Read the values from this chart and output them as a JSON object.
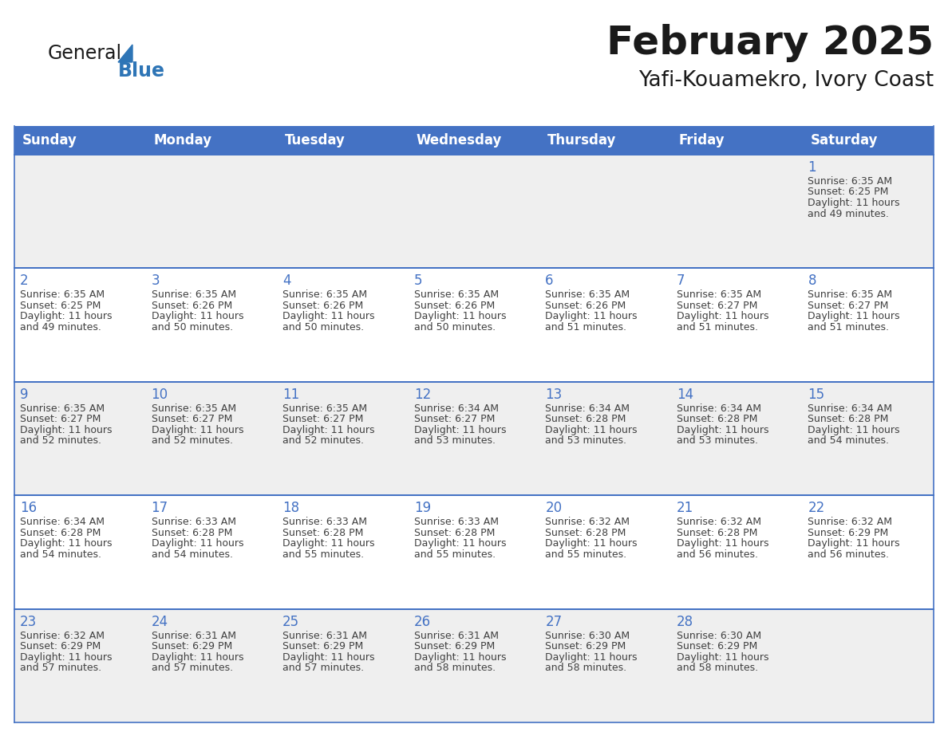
{
  "title": "February 2025",
  "subtitle": "Yafi-Kouamekro, Ivory Coast",
  "header_bg": "#4472C4",
  "header_text_color": "#FFFFFF",
  "day_names": [
    "Sunday",
    "Monday",
    "Tuesday",
    "Wednesday",
    "Thursday",
    "Friday",
    "Saturday"
  ],
  "cell_bg_odd": "#EFEFEF",
  "cell_bg_even": "#FFFFFF",
  "border_color": "#4472C4",
  "date_color": "#4472C4",
  "text_color": "#404040",
  "title_color": "#1a1a1a",
  "logo_general_color": "#1a1a1a",
  "logo_blue_color": "#2E75B6",
  "calendar_data": [
    [
      null,
      null,
      null,
      null,
      null,
      null,
      1
    ],
    [
      2,
      3,
      4,
      5,
      6,
      7,
      8
    ],
    [
      9,
      10,
      11,
      12,
      13,
      14,
      15
    ],
    [
      16,
      17,
      18,
      19,
      20,
      21,
      22
    ],
    [
      23,
      24,
      25,
      26,
      27,
      28,
      null
    ]
  ],
  "sunrise_data": {
    "1": "6:35 AM",
    "2": "6:35 AM",
    "3": "6:35 AM",
    "4": "6:35 AM",
    "5": "6:35 AM",
    "6": "6:35 AM",
    "7": "6:35 AM",
    "8": "6:35 AM",
    "9": "6:35 AM",
    "10": "6:35 AM",
    "11": "6:35 AM",
    "12": "6:34 AM",
    "13": "6:34 AM",
    "14": "6:34 AM",
    "15": "6:34 AM",
    "16": "6:34 AM",
    "17": "6:33 AM",
    "18": "6:33 AM",
    "19": "6:33 AM",
    "20": "6:32 AM",
    "21": "6:32 AM",
    "22": "6:32 AM",
    "23": "6:32 AM",
    "24": "6:31 AM",
    "25": "6:31 AM",
    "26": "6:31 AM",
    "27": "6:30 AM",
    "28": "6:30 AM"
  },
  "sunset_data": {
    "1": "6:25 PM",
    "2": "6:25 PM",
    "3": "6:26 PM",
    "4": "6:26 PM",
    "5": "6:26 PM",
    "6": "6:26 PM",
    "7": "6:27 PM",
    "8": "6:27 PM",
    "9": "6:27 PM",
    "10": "6:27 PM",
    "11": "6:27 PM",
    "12": "6:27 PM",
    "13": "6:28 PM",
    "14": "6:28 PM",
    "15": "6:28 PM",
    "16": "6:28 PM",
    "17": "6:28 PM",
    "18": "6:28 PM",
    "19": "6:28 PM",
    "20": "6:28 PM",
    "21": "6:28 PM",
    "22": "6:29 PM",
    "23": "6:29 PM",
    "24": "6:29 PM",
    "25": "6:29 PM",
    "26": "6:29 PM",
    "27": "6:29 PM",
    "28": "6:29 PM"
  },
  "daylight_data": {
    "1": [
      "11 hours",
      "and 49 minutes."
    ],
    "2": [
      "11 hours",
      "and 49 minutes."
    ],
    "3": [
      "11 hours",
      "and 50 minutes."
    ],
    "4": [
      "11 hours",
      "and 50 minutes."
    ],
    "5": [
      "11 hours",
      "and 50 minutes."
    ],
    "6": [
      "11 hours",
      "and 51 minutes."
    ],
    "7": [
      "11 hours",
      "and 51 minutes."
    ],
    "8": [
      "11 hours",
      "and 51 minutes."
    ],
    "9": [
      "11 hours",
      "and 52 minutes."
    ],
    "10": [
      "11 hours",
      "and 52 minutes."
    ],
    "11": [
      "11 hours",
      "and 52 minutes."
    ],
    "12": [
      "11 hours",
      "and 53 minutes."
    ],
    "13": [
      "11 hours",
      "and 53 minutes."
    ],
    "14": [
      "11 hours",
      "and 53 minutes."
    ],
    "15": [
      "11 hours",
      "and 54 minutes."
    ],
    "16": [
      "11 hours",
      "and 54 minutes."
    ],
    "17": [
      "11 hours",
      "and 54 minutes."
    ],
    "18": [
      "11 hours",
      "and 55 minutes."
    ],
    "19": [
      "11 hours",
      "and 55 minutes."
    ],
    "20": [
      "11 hours",
      "and 55 minutes."
    ],
    "21": [
      "11 hours",
      "and 56 minutes."
    ],
    "22": [
      "11 hours",
      "and 56 minutes."
    ],
    "23": [
      "11 hours",
      "and 57 minutes."
    ],
    "24": [
      "11 hours",
      "and 57 minutes."
    ],
    "25": [
      "11 hours",
      "and 57 minutes."
    ],
    "26": [
      "11 hours",
      "and 58 minutes."
    ],
    "27": [
      "11 hours",
      "and 58 minutes."
    ],
    "28": [
      "11 hours",
      "and 58 minutes."
    ]
  },
  "fig_width": 11.88,
  "fig_height": 9.18,
  "dpi": 100
}
